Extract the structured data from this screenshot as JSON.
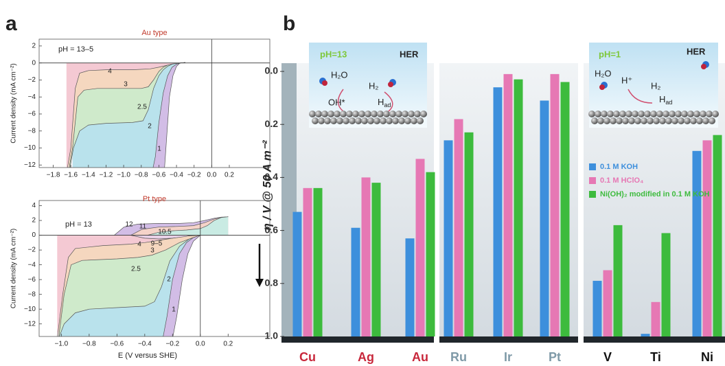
{
  "panel_labels": [
    "a",
    "b"
  ],
  "chart_data": [
    {
      "type": "area",
      "title": "Au type",
      "annotation": "pH = 13–5",
      "ylabel": "Current density (mA cm⁻²)",
      "xlim": [
        -1.96,
        0.66
      ],
      "ylim": [
        -12.3,
        2.8
      ],
      "xticks": [
        {
          "value": -1.8,
          "label": "−1.8"
        },
        {
          "value": -1.6,
          "label": "−1.6"
        },
        {
          "value": -1.4,
          "label": "−1.4"
        },
        {
          "value": -1.2,
          "label": "−1.2"
        },
        {
          "value": -1,
          "label": "−1.0"
        },
        {
          "value": -0.8,
          "label": "−0.8"
        },
        {
          "value": -0.6,
          "label": "−0.6"
        },
        {
          "value": -0.4,
          "label": "−0.4"
        },
        {
          "value": -0.2,
          "label": "−0.2"
        },
        {
          "value": 0,
          "label": "0.0"
        },
        0.2
      ],
      "yticks": [
        2,
        0,
        {
          "value": -2,
          "label": "−2"
        },
        {
          "value": -4,
          "label": "−4"
        },
        {
          "value": -6,
          "label": "−6"
        },
        {
          "value": -8,
          "label": "−8"
        },
        {
          "value": -10,
          "label": "−10"
        },
        {
          "value": -12,
          "label": "−12"
        }
      ],
      "series": [
        {
          "name": "1",
          "color": "#d2bde6",
          "x": [
            -1.58,
            -0.54,
            -0.52,
            -0.48,
            -0.44,
            -0.4,
            -0.36,
            -0.3
          ],
          "values": [
            -13,
            -13,
            -10,
            -4,
            -1.5,
            -0.4,
            0,
            0.05
          ]
        },
        {
          "name": "2",
          "color": "#b9e2ec",
          "x": [
            -1.58,
            -0.68,
            -0.64,
            -0.6,
            -0.55,
            -0.5,
            -0.45,
            -0.4,
            -0.35,
            -0.3
          ],
          "values": [
            -13,
            -13,
            -11,
            -7,
            -3.5,
            -1.5,
            -0.5,
            -0.15,
            0,
            0.05
          ]
        },
        {
          "name": "2.5",
          "color": "#cfeacb",
          "x": [
            -1.62,
            -1.57,
            -1.5,
            -1.4,
            -1.2,
            -0.9,
            -0.78,
            -0.72,
            -0.66,
            -0.6,
            -0.55,
            -0.5,
            -0.45,
            -0.4,
            -0.35,
            -0.3
          ],
          "values": [
            -13,
            -10,
            -8,
            -7.3,
            -7.1,
            -7,
            -6.8,
            -5.5,
            -3,
            -1.5,
            -0.8,
            -0.4,
            -0.15,
            -0.05,
            0,
            0.05
          ]
        },
        {
          "name": "3",
          "color": "#f5d7bf",
          "x": [
            -1.63,
            -1.58,
            -1.52,
            -1.45,
            -1.3,
            -1.0,
            -0.8,
            -0.72,
            -0.66,
            -0.6,
            -0.55,
            -0.5,
            -0.45,
            -0.4,
            -0.35,
            -0.3
          ],
          "values": [
            -13,
            -10,
            -4,
            -3.2,
            -3,
            -3,
            -3,
            -2.8,
            -2,
            -1,
            -0.5,
            -0.25,
            -0.1,
            -0.04,
            0,
            0.05
          ]
        },
        {
          "name": "4",
          "color": "#f4c9d3",
          "x": [
            -1.65,
            -1.6,
            -1.55,
            -1.5,
            -1.4,
            -1.2,
            -0.9,
            -0.7,
            -0.6,
            -0.5,
            -0.45,
            -0.4,
            -0.35,
            -0.3
          ],
          "values": [
            -13,
            -10,
            -3,
            -1.2,
            -0.9,
            -0.8,
            -0.8,
            -0.7,
            -0.5,
            -0.25,
            -0.12,
            -0.05,
            0,
            0.05
          ]
        }
      ]
    },
    {
      "type": "area",
      "title": "Pt type",
      "annotation": "pH = 13",
      "ylabel": "Current density (mA cm⁻²)",
      "xlabel": "E (V versus SHE)",
      "xlim": [
        -1.16,
        0.5
      ],
      "ylim": [
        -13.7,
        4.7
      ],
      "xticks": [
        {
          "value": -1,
          "label": "−1.0"
        },
        {
          "value": -0.8,
          "label": "−0.8"
        },
        {
          "value": -0.6,
          "label": "−0.6"
        },
        {
          "value": -0.4,
          "label": "−0.4"
        },
        {
          "value": -0.2,
          "label": "−0.2"
        },
        {
          "value": 0,
          "label": "0.0"
        },
        0.2
      ],
      "yticks": [
        4,
        2,
        0,
        {
          "value": -2,
          "label": "−2"
        },
        {
          "value": -4,
          "label": "−4"
        },
        {
          "value": -6,
          "label": "−6"
        },
        {
          "value": -8,
          "label": "−8"
        },
        {
          "value": -10,
          "label": "−10"
        },
        {
          "value": -12,
          "label": "−12"
        }
      ],
      "series": [
        {
          "name": "1",
          "color": "#d2bde6",
          "x": [
            -1.02,
            -0.2,
            -0.17,
            -0.13,
            -0.09,
            -0.05,
            0,
            0.05,
            0.1,
            0.15,
            0.2
          ],
          "values": [
            -14,
            -14,
            -11,
            -6,
            -2.5,
            -0.8,
            0,
            0.8,
            1.8,
            2.4,
            2.5
          ]
        },
        {
          "name": "2",
          "color": "#b9e2ec",
          "x": [
            -1.02,
            -0.27,
            -0.24,
            -0.2,
            -0.15,
            -0.1,
            -0.05,
            0,
            0.05,
            0.1,
            0.15,
            0.2
          ],
          "values": [
            -14,
            -14,
            -11,
            -6,
            -2.5,
            -1,
            -0.3,
            0,
            0.8,
            1.8,
            2.4,
            2.5
          ]
        },
        {
          "name": "2.5",
          "color": "#cfeacb",
          "x": [
            -1.02,
            -0.98,
            -0.9,
            -0.8,
            -0.6,
            -0.4,
            -0.33,
            -0.28,
            -0.22,
            -0.15,
            -0.08,
            0,
            0.05,
            0.1,
            0.15,
            0.2
          ],
          "values": [
            -14,
            -12,
            -10.5,
            -10,
            -9.8,
            -9.6,
            -9,
            -7,
            -3.5,
            -1.5,
            -0.5,
            0,
            0.8,
            1.8,
            2.4,
            2.5
          ]
        },
        {
          "name": "3",
          "color": "#f5d7bf",
          "x": [
            -1.02,
            -0.98,
            -0.93,
            -0.85,
            -0.6,
            -0.45,
            -0.35,
            -0.25,
            -0.15,
            -0.05,
            0,
            0.05,
            0.1,
            0.15,
            0.2
          ],
          "values": [
            -14,
            -8,
            -4,
            -3.4,
            -3.2,
            -3,
            -2.7,
            -2,
            -1,
            -0.3,
            0,
            0.8,
            1.8,
            2.4,
            2.5
          ]
        },
        {
          "name": "4",
          "color": "#f4c9d3",
          "x": [
            -1.03,
            -0.99,
            -0.95,
            -0.9,
            -0.7,
            -0.5,
            -0.4,
            -0.3,
            -0.2,
            -0.1,
            0,
            0.05,
            0.1,
            0.15,
            0.2
          ],
          "values": [
            -14,
            -8,
            -3,
            -1.8,
            -1.4,
            -1.2,
            -1,
            -0.7,
            -0.4,
            -0.1,
            0,
            0.8,
            1.8,
            2.4,
            2.5
          ]
        },
        {
          "name": "9–5",
          "color": "#e8d0e6",
          "x": [
            -0.5,
            -0.4,
            -0.3,
            -0.2,
            -0.1,
            0,
            0.05,
            0.1,
            0.15,
            0.2
          ],
          "values": [
            0,
            -0.4,
            -0.5,
            -0.4,
            -0.15,
            0.3,
            1,
            1.8,
            2.4,
            2.5
          ]
        },
        {
          "name": "12",
          "color": "#d2bde6",
          "x": [
            -0.62,
            -0.55,
            -0.45,
            -0.3,
            -0.15,
            -0.05,
            0.03,
            0.1,
            0.15,
            0.2
          ],
          "values": [
            0,
            1.1,
            1.5,
            1.6,
            1.6,
            1.7,
            2,
            2.3,
            2.45,
            2.5
          ]
        },
        {
          "name": "11",
          "color": "#f5d3c9",
          "x": [
            -0.5,
            -0.42,
            -0.3,
            -0.15,
            -0.05,
            0.03,
            0.1,
            0.15,
            0.2
          ],
          "values": [
            0,
            0.8,
            1.1,
            1.2,
            1.3,
            1.7,
            2.2,
            2.4,
            2.5
          ]
        },
        {
          "name": "10.5",
          "color": "#c9ebe3",
          "x": [
            -0.38,
            -0.3,
            -0.2,
            -0.1,
            0,
            0.05,
            0.1,
            0.15,
            0.2
          ],
          "values": [
            0,
            0.4,
            0.6,
            0.7,
            0.9,
            1.3,
            2,
            2.4,
            2.5
          ]
        }
      ]
    },
    {
      "type": "bar",
      "ylabel": "η / V @ 50 A m⁻²",
      "categories": [
        "Cu",
        "Ag",
        "Au",
        "Ru",
        "Ir",
        "Pt",
        "V",
        "Ti",
        "Ni"
      ],
      "category_colors": [
        "#c8283c",
        "#c8283c",
        "#c8283c",
        "#7f9aa8",
        "#7f9aa8",
        "#7f9aa8",
        "#111111",
        "#111111",
        "#111111"
      ],
      "ylim": [
        0,
        1
      ],
      "y_inverted": true,
      "yticks": [
        {
          "value": 0,
          "label": "0.0"
        },
        0.2,
        0.4,
        0.6,
        0.8,
        {
          "value": 1,
          "label": "1.0"
        }
      ],
      "series": [
        {
          "name": "0.1 M KOH",
          "color": "#3d8fdc",
          "values": [
            0.53,
            0.59,
            0.63,
            0.26,
            0.06,
            0.11,
            0.79,
            0.99,
            0.3
          ]
        },
        {
          "name": "0.1 M HClO₄",
          "color": "#e678b4",
          "values": [
            0.44,
            0.4,
            0.33,
            0.18,
            0.01,
            0.01,
            0.75,
            0.87,
            0.26
          ]
        },
        {
          "name": "Ni(OH)₂ modified in 0.1 M KOH",
          "color": "#3dbb3d",
          "values": [
            0.44,
            0.42,
            0.38,
            0.23,
            0.03,
            0.04,
            0.58,
            0.61,
            0.24
          ]
        }
      ],
      "annotations": [
        "pH=13",
        "HER",
        "H₂O",
        "H₂",
        "OH*",
        {
          "text": "H",
          "sub": "ad"
        },
        "pH=1",
        "HER",
        "H₂O",
        "H⁺",
        "H₂",
        {
          "text": "H",
          "sub": "ad"
        }
      ]
    }
  ]
}
